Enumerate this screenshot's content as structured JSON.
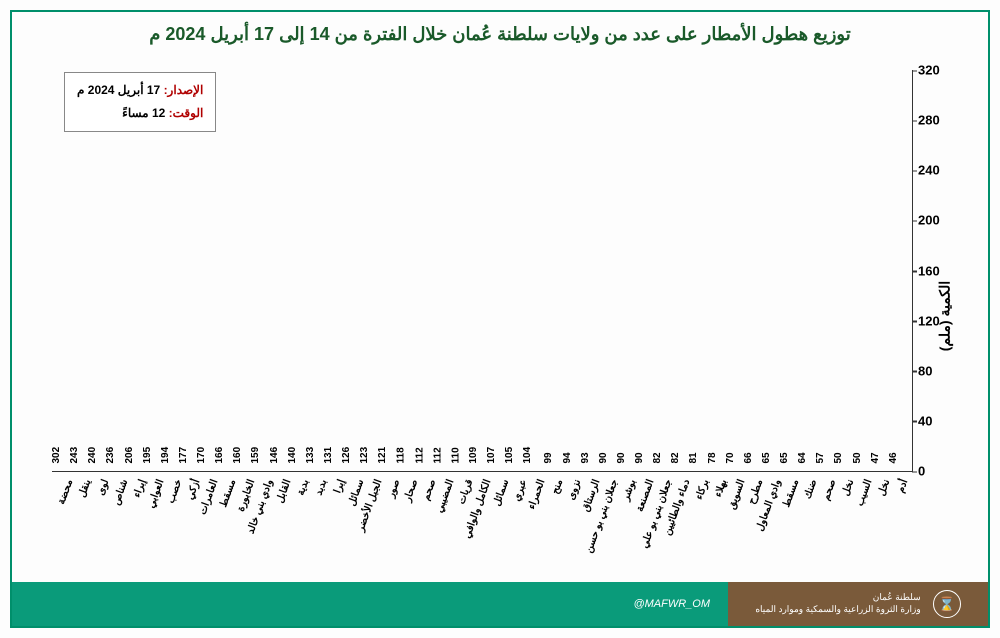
{
  "title": "توزيع هطول الأمطار على عدد من ولايات سلطنة عُمان خلال الفترة من 14 إلى 17 أبريل 2024 م",
  "title_color": "#1a5a2a",
  "info": {
    "line1_label": "الإصدار:",
    "line1_value": "17 أبريل 2024 م",
    "line2_label": "الوقت:",
    "line2_value": "12 مساءً"
  },
  "chart": {
    "type": "bar",
    "ylabel": "الكمية (ملم)",
    "ylim_max": 320,
    "ytick_step": 40,
    "bar_color": "#5a80bd",
    "border_color": "#008f6b",
    "value_label_fontsize": 10,
    "axis_label_fontsize": 10,
    "data": [
      {
        "label": "محضة",
        "value": 302
      },
      {
        "label": "ينقل",
        "value": 243
      },
      {
        "label": "لوى",
        "value": 240
      },
      {
        "label": "شناص",
        "value": 236
      },
      {
        "label": "إبراء",
        "value": 206
      },
      {
        "label": "العوابي",
        "value": 195
      },
      {
        "label": "خصب",
        "value": 194
      },
      {
        "label": "أزكي",
        "value": 177
      },
      {
        "label": "العامرات",
        "value": 170
      },
      {
        "label": "مسقط",
        "value": 166
      },
      {
        "label": "الخابورة",
        "value": 160
      },
      {
        "label": "وادي بني خالد",
        "value": 159
      },
      {
        "label": "القابل",
        "value": 146
      },
      {
        "label": "بدية",
        "value": 140
      },
      {
        "label": "بدبد",
        "value": 133
      },
      {
        "label": "إبرا",
        "value": 131
      },
      {
        "label": "سمائل",
        "value": 126
      },
      {
        "label": "الجبل الأخضر",
        "value": 123
      },
      {
        "label": "صور",
        "value": 121
      },
      {
        "label": "صحار",
        "value": 118
      },
      {
        "label": "صحم",
        "value": 112
      },
      {
        "label": "المضيبي",
        "value": 112
      },
      {
        "label": "قريات",
        "value": 110
      },
      {
        "label": "الكامل والوافي",
        "value": 109
      },
      {
        "label": "سمائل",
        "value": 107
      },
      {
        "label": "عبري",
        "value": 105
      },
      {
        "label": "الحمراء",
        "value": 104
      },
      {
        "label": "منح",
        "value": 99
      },
      {
        "label": "نزوى",
        "value": 94
      },
      {
        "label": "الرستاق",
        "value": 93
      },
      {
        "label": "جعلان بني بو حسن",
        "value": 90
      },
      {
        "label": "بوشر",
        "value": 90
      },
      {
        "label": "المصنعة",
        "value": 90
      },
      {
        "label": "جعلان بني بو علي",
        "value": 82
      },
      {
        "label": "دماء والطائيين",
        "value": 82
      },
      {
        "label": "بركاء",
        "value": 81
      },
      {
        "label": "بهلاء",
        "value": 78
      },
      {
        "label": "السويق",
        "value": 70
      },
      {
        "label": "مطرح",
        "value": 66
      },
      {
        "label": "وادي المعاول",
        "value": 65
      },
      {
        "label": "مسقط",
        "value": 65
      },
      {
        "label": "ضنك",
        "value": 64
      },
      {
        "label": "صحم",
        "value": 57
      },
      {
        "label": "نخل",
        "value": 50
      },
      {
        "label": "السيب",
        "value": 50
      },
      {
        "label": "نخل",
        "value": 47
      },
      {
        "label": "أدم",
        "value": 46
      }
    ]
  },
  "footer": {
    "green_bg": "#0a9b7a",
    "brown_bg": "#7a5a3a",
    "handle": "@MAFWR_OM",
    "agency_line1": "سلطنة عُمان",
    "agency_line2": "وزارة الثروة الزراعية والسمكية وموارد المياه",
    "logo_glyph": "⌛"
  }
}
